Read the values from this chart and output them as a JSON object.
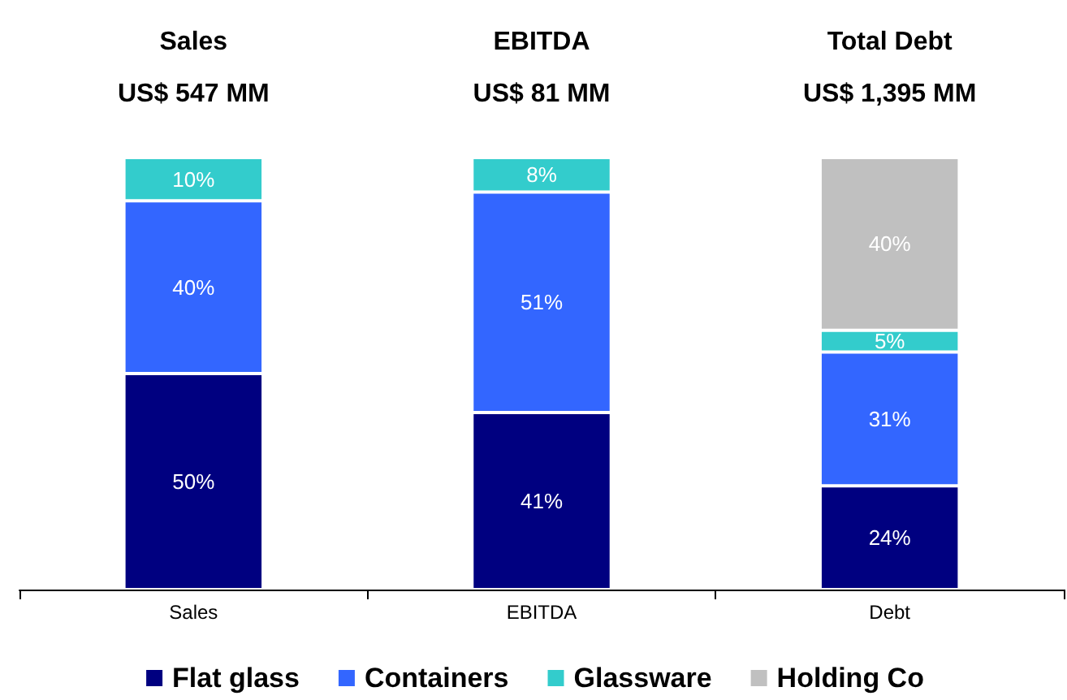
{
  "chart_data": {
    "type": "bar",
    "stacked": true,
    "categories": [
      "Sales",
      "EBITDA",
      "Debt"
    ],
    "series": [
      {
        "name": "Flat glass",
        "color": "#000080",
        "values": [
          50,
          41,
          24
        ],
        "value_labels": [
          "50%",
          "41%",
          "24%"
        ]
      },
      {
        "name": "Containers",
        "color": "#3366ff",
        "values": [
          40,
          51,
          31
        ],
        "value_labels": [
          "40%",
          "51%",
          "31%"
        ]
      },
      {
        "name": "Glassware",
        "color": "#33cccc",
        "values": [
          10,
          8,
          5
        ],
        "value_labels": [
          "10%",
          "8%",
          "5%"
        ]
      },
      {
        "name": "Holding Co",
        "color": "#c0c0c0",
        "values": [
          null,
          null,
          40
        ],
        "value_labels": [
          null,
          null,
          "40%"
        ]
      }
    ],
    "annotations": [
      "Sales\nUS$ 547 MM",
      "EBITDA\nUS$ 81 MM",
      "Total Debt\nUS$ 1,395 MM"
    ],
    "legend": "bottom",
    "grid": false
  }
}
